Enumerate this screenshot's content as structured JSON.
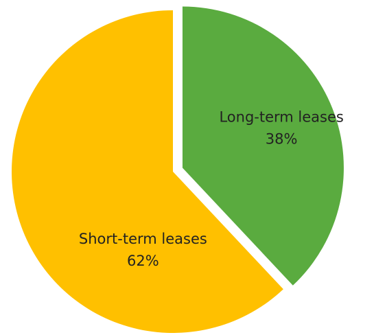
{
  "chart_data": {
    "type": "pie",
    "categories": [
      "Long-term leases",
      "Short-term leases"
    ],
    "values": [
      38,
      62
    ],
    "value_labels": [
      "38%",
      "62%"
    ],
    "colors": [
      "#5aab3f",
      "#ffc000"
    ],
    "exploded": [
      true,
      false
    ]
  }
}
